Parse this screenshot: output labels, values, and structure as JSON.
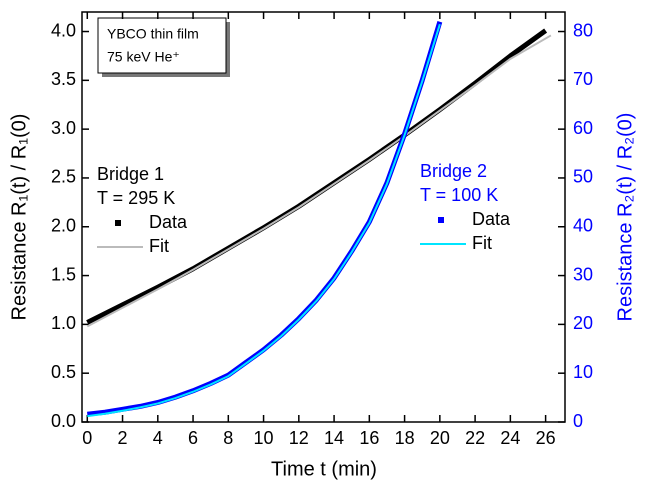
{
  "chart_data": {
    "type": "line",
    "x_label": "Time  t  (min)",
    "y_label": "Resistance  R₁(t) / R₁(0)",
    "y2_label": "Resistance  R₂(t) / R₂(0)",
    "annotation": [
      "YBCO thin film",
      "75 keV He⁺"
    ],
    "legends": [
      {
        "title": "Bridge 1",
        "condition": "T = 295 K",
        "color": "#000000"
      },
      {
        "title": "Bridge 2",
        "condition": "T = 100 K",
        "color": "#0000ff"
      }
    ],
    "xlim": [
      -0.3,
      27.1
    ],
    "xticks": [
      0,
      2,
      4,
      6,
      8,
      10,
      12,
      14,
      16,
      18,
      20,
      22,
      24,
      26
    ],
    "ylim": [
      0,
      4.2
    ],
    "yticks": [
      {
        "value": 0,
        "label": "0.0"
      },
      0.5,
      {
        "value": 1,
        "label": "1.0"
      },
      1.5,
      {
        "value": 2,
        "label": "2.0"
      },
      2.5,
      {
        "value": 3,
        "label": "3.0"
      },
      3.5,
      {
        "value": 4,
        "label": "4.0"
      }
    ],
    "y2lim": [
      0,
      84
    ],
    "y2ticks": [
      0,
      10,
      20,
      30,
      40,
      50,
      60,
      70,
      80
    ],
    "series": [
      {
        "name": "Data",
        "color": "#000000",
        "style": "data",
        "x": [
          0,
          2,
          4,
          6,
          8,
          10,
          12,
          14,
          16,
          18,
          20,
          22,
          24,
          26
        ],
        "values": [
          1.02,
          1.2,
          1.38,
          1.57,
          1.78,
          1.99,
          2.21,
          2.45,
          2.69,
          2.94,
          3.2,
          3.47,
          3.75,
          4.01
        ]
      },
      {
        "name": "Fit",
        "color": "#bbbbbb",
        "style": "fit",
        "x": [
          0,
          2,
          4,
          6,
          8,
          10,
          12,
          14,
          16,
          18,
          20,
          22,
          24,
          26.3
        ],
        "values": [
          0.98,
          1.17,
          1.36,
          1.56,
          1.77,
          1.98,
          2.2,
          2.44,
          2.68,
          2.93,
          3.19,
          3.45,
          3.72,
          3.96
        ]
      },
      {
        "name": "Data",
        "color": "#0000ff",
        "style": "data",
        "axis": "y2",
        "x": [
          0,
          1,
          2,
          3,
          4,
          5,
          6,
          7,
          8,
          9,
          10,
          11,
          12,
          13,
          14,
          15,
          16,
          17,
          18,
          19,
          20
        ],
        "values": [
          1.6,
          2.0,
          2.6,
          3.2,
          4.0,
          5.1,
          6.4,
          7.9,
          9.6,
          12.2,
          14.8,
          17.8,
          21.2,
          25,
          29.5,
          35,
          41,
          49,
          59,
          70,
          82
        ]
      },
      {
        "name": "Fit",
        "color": "#00e5ff",
        "style": "fit",
        "axis": "y2",
        "x": [
          0,
          1,
          2,
          3,
          4,
          5,
          6,
          7,
          8,
          9,
          10,
          11,
          12,
          13,
          14,
          15,
          16,
          17,
          18,
          19,
          20
        ],
        "values": [
          1.2,
          1.7,
          2.3,
          3.0,
          3.8,
          4.9,
          6.2,
          7.7,
          9.4,
          12.0,
          14.6,
          17.6,
          21.0,
          24.8,
          29.3,
          34.8,
          40.8,
          48.8,
          58.8,
          69.8,
          81.5
        ]
      }
    ]
  }
}
